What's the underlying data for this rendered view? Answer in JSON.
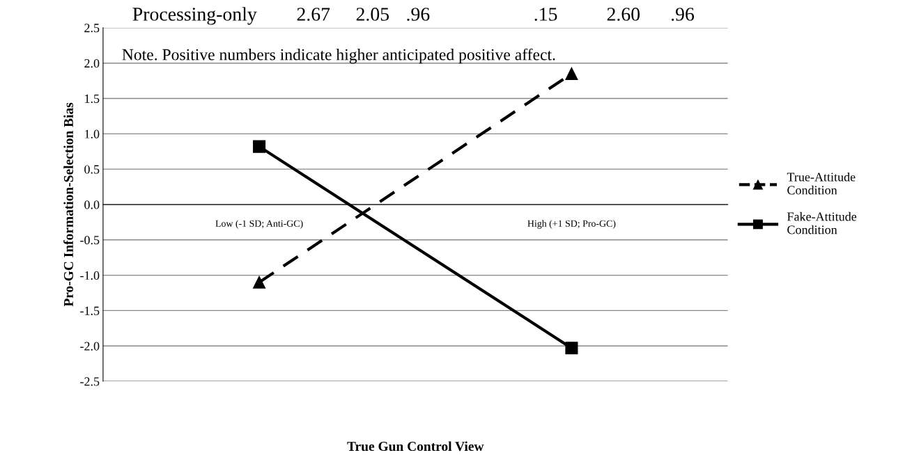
{
  "chart_data": {
    "type": "line",
    "xlabel": "True Gun Control View",
    "ylabel": "Pro-GC Information-Selection Bias",
    "categories": [
      "Low (-1 SD; Anti-GC)",
      "High (+1 SD; Pro-GC)"
    ],
    "series": [
      {
        "name": "True-Attitude Condition",
        "color": "#000000",
        "values": [
          -1.1,
          1.85
        ],
        "marker": "triangle",
        "line_style": "dashed"
      },
      {
        "name": "Fake-Attitude Condition",
        "color": "#000000",
        "values": [
          0.82,
          -2.03
        ],
        "marker": "square",
        "line_style": "solid"
      }
    ],
    "ylim": [
      -2.5,
      2.5
    ],
    "yticks": [
      {
        "value": -2.5,
        "label": "-2.5"
      },
      {
        "value": -2,
        "label": "-2.0"
      },
      {
        "value": -1.5,
        "label": "-1.5"
      },
      {
        "value": -1,
        "label": "-1.0"
      },
      {
        "value": -0.5,
        "label": "-0.5"
      },
      {
        "value": 0,
        "label": "0.0"
      },
      {
        "value": 0.5,
        "label": "0.5"
      },
      {
        "value": 1,
        "label": "1.0"
      },
      {
        "value": 1.5,
        "label": "1.5"
      },
      {
        "value": 2,
        "label": "2.0"
      },
      {
        "value": 2.5,
        "label": "2.5"
      }
    ],
    "grid": "y",
    "legend": "right",
    "annotations": [
      "Processing-only",
      "2.67",
      "2.05",
      ".96",
      ".15",
      "2.60",
      ".96",
      "Note. Positive numbers indicate higher anticipated positive affect."
    ]
  }
}
